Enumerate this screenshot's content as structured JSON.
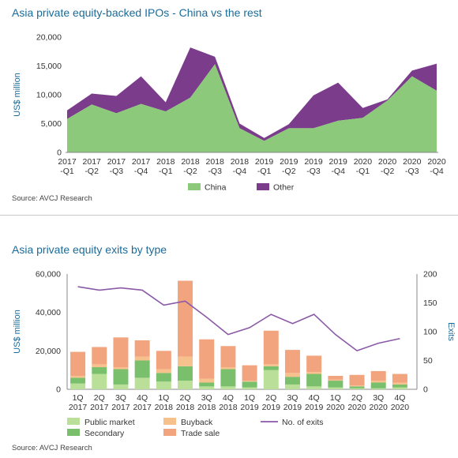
{
  "colors": {
    "china": "#8cc97a",
    "other": "#7b3c8c",
    "public_market": "#b9df98",
    "secondary": "#79bf6c",
    "buyback": "#f7c18d",
    "trade_sale": "#f2a47f",
    "exits_line": "#8a5aa6",
    "title": "#1b6b99",
    "axis_label": "#1b6b99"
  },
  "chart_data": [
    {
      "type": "area",
      "stacked": true,
      "title": "Asia private equity-backed IPOs - China vs the rest",
      "ylabel": "US$ million",
      "ylim": [
        0,
        20000
      ],
      "yticks": [
        "0",
        "5,000",
        "10,000",
        "15,000",
        "20,000"
      ],
      "ytick_values": [
        0,
        5000,
        10000,
        15000,
        20000
      ],
      "categories": [
        [
          "2017",
          "-Q1"
        ],
        [
          "2017",
          "-Q2"
        ],
        [
          "2017",
          "-Q3"
        ],
        [
          "2017",
          "-Q4"
        ],
        [
          "2018",
          "-Q1"
        ],
        [
          "2018",
          "-Q2"
        ],
        [
          "2018",
          "-Q3"
        ],
        [
          "2018",
          "-Q4"
        ],
        [
          "2019",
          "-Q1"
        ],
        [
          "2019",
          "-Q2"
        ],
        [
          "2019",
          "-Q3"
        ],
        [
          "2019",
          "-Q4"
        ],
        [
          "2020",
          "-Q1"
        ],
        [
          "2020",
          "-Q2"
        ],
        [
          "2020",
          "-Q3"
        ],
        [
          "2020",
          "-Q4"
        ]
      ],
      "series": [
        {
          "name": "China",
          "color_key": "china",
          "values": [
            5800,
            8300,
            6800,
            8400,
            7100,
            9500,
            15300,
            4200,
            2000,
            4200,
            4200,
            5500,
            6000,
            9000,
            13200,
            10700
          ]
        },
        {
          "name": "Other",
          "color_key": "other",
          "values": [
            1500,
            1900,
            3000,
            4800,
            1600,
            8700,
            1300,
            800,
            500,
            700,
            5700,
            6600,
            1700,
            200,
            1000,
            4700
          ]
        }
      ],
      "legend": [
        {
          "label": "China",
          "color_key": "china"
        },
        {
          "label": "Other",
          "color_key": "other"
        }
      ],
      "legend_position": "bottom",
      "source": "Source: AVCJ Research"
    },
    {
      "type": "bar",
      "stacked": true,
      "title": "Asia private equity exits by type",
      "ylabel": "US$ million",
      "y2label": "Exits",
      "ylim": [
        0,
        60000
      ],
      "y2lim": [
        0,
        200
      ],
      "yticks": [
        "0",
        "20,000",
        "40,000",
        "60,000"
      ],
      "ytick_values": [
        0,
        20000,
        40000,
        60000
      ],
      "y2ticks": [
        "0",
        "50",
        "100",
        "150",
        "200"
      ],
      "y2tick_values": [
        0,
        50,
        100,
        150,
        200
      ],
      "categories": [
        [
          "1Q",
          "2017"
        ],
        [
          "2Q",
          "2017"
        ],
        [
          "3Q",
          "2017"
        ],
        [
          "4Q",
          "2017"
        ],
        [
          "1Q",
          "2018"
        ],
        [
          "2Q",
          "2018"
        ],
        [
          "3Q",
          "2018"
        ],
        [
          "4Q",
          "2018"
        ],
        [
          "1Q",
          "2019"
        ],
        [
          "2Q",
          "2019"
        ],
        [
          "3Q",
          "2019"
        ],
        [
          "4Q",
          "2019"
        ],
        [
          "1Q",
          "2020"
        ],
        [
          "2Q",
          "2020"
        ],
        [
          "3Q",
          "2020"
        ],
        [
          "4Q",
          "2020"
        ]
      ],
      "series": [
        {
          "name": "Public market",
          "color_key": "public_market",
          "values": [
            3000,
            8000,
            2500,
            6000,
            4000,
            4500,
            1500,
            1500,
            1000,
            10000,
            2500,
            1500,
            1000,
            500,
            500,
            1000
          ]
        },
        {
          "name": "Secondary",
          "color_key": "secondary",
          "values": [
            3000,
            3500,
            8000,
            9000,
            4500,
            7500,
            2000,
            9000,
            3000,
            2000,
            4000,
            6500,
            3500,
            1000,
            3000,
            1500
          ]
        },
        {
          "name": "Buyback",
          "color_key": "buyback",
          "values": [
            1000,
            1500,
            1000,
            2000,
            2000,
            5000,
            2000,
            1000,
            500,
            1000,
            2000,
            1000,
            500,
            500,
            1000,
            1000
          ]
        },
        {
          "name": "Trade sale",
          "color_key": "trade_sale",
          "values": [
            12500,
            9000,
            15500,
            8500,
            9500,
            39500,
            20500,
            11000,
            8000,
            17500,
            12000,
            8500,
            2000,
            5500,
            5000,
            4500
          ]
        }
      ],
      "line": {
        "name": "No. of exits",
        "color_key": "exits_line",
        "axis": "y2",
        "values": [
          178,
          172,
          176,
          172,
          146,
          153,
          125,
          95,
          107,
          130,
          114,
          130,
          95,
          67,
          80,
          88
        ]
      },
      "legend": [
        {
          "label": "Public market",
          "color_key": "public_market",
          "kind": "box"
        },
        {
          "label": "Buyback",
          "color_key": "buyback",
          "kind": "box"
        },
        {
          "label": "No. of exits",
          "color_key": "exits_line",
          "kind": "line"
        },
        {
          "label": "Secondary",
          "color_key": "secondary",
          "kind": "box"
        },
        {
          "label": "Trade sale",
          "color_key": "trade_sale",
          "kind": "box"
        }
      ],
      "legend_position": "bottom",
      "source": "Source: AVCJ Research"
    }
  ]
}
